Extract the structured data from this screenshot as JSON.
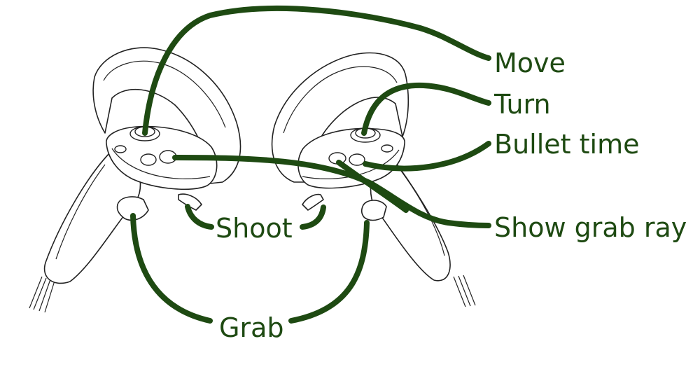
{
  "colors": {
    "callout": "#1e4a12",
    "outline": "#222222",
    "background": "#ffffff"
  },
  "labels": {
    "move": "Move",
    "turn": "Turn",
    "bullet_time": "Bullet time",
    "show_grab_ray": "Show grab ray",
    "shoot": "Shoot",
    "grab": "Grab"
  }
}
